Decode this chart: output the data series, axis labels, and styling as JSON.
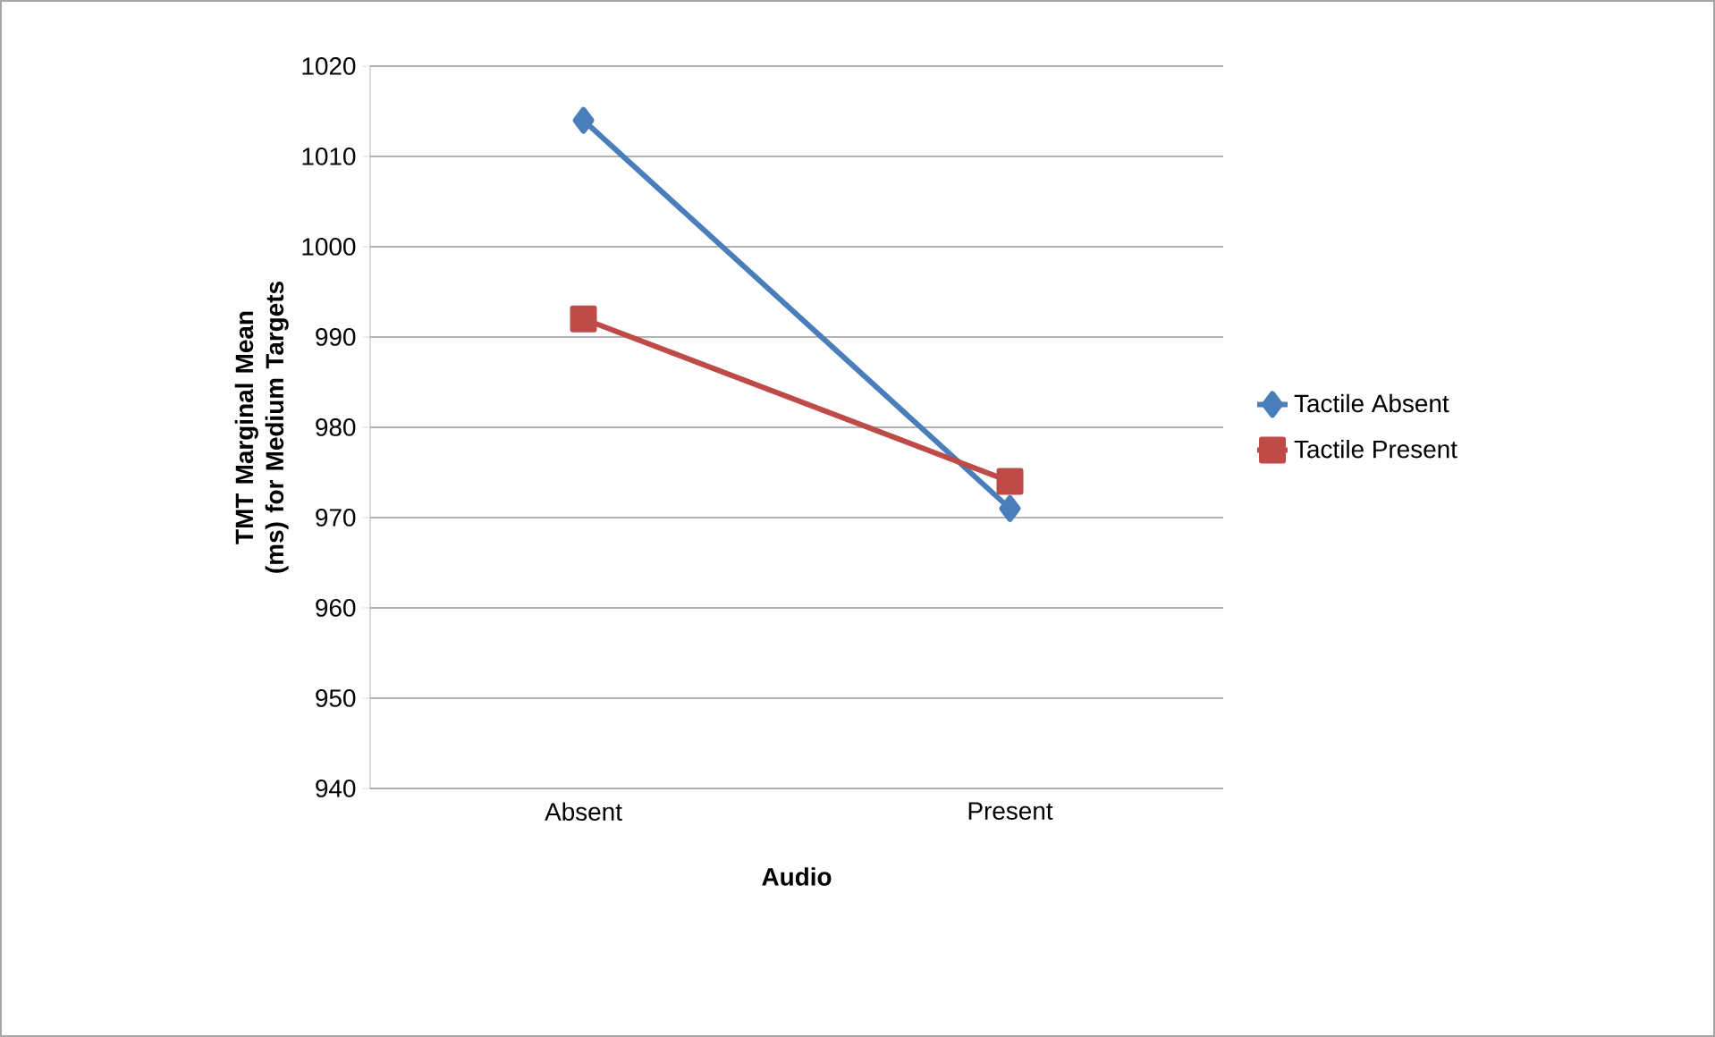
{
  "chart_data": {
    "type": "line",
    "xlabel": "Audio",
    "ylabel": "TMT Marginal Mean (ms) for Medium Targets",
    "categories": [
      "Absent",
      "Present"
    ],
    "series": [
      {
        "name": "Tactile Absent",
        "color": "#4a7ebb",
        "marker": "diamond",
        "values": [
          1014,
          971
        ]
      },
      {
        "name": "Tactile Present",
        "color": "#be4b48",
        "marker": "square",
        "values": [
          992,
          974
        ]
      }
    ],
    "ylim": [
      940,
      1020
    ],
    "yticks": [
      940,
      950,
      960,
      970,
      980,
      990,
      1000,
      1010,
      1020
    ],
    "grid": "y",
    "legend": "right"
  }
}
